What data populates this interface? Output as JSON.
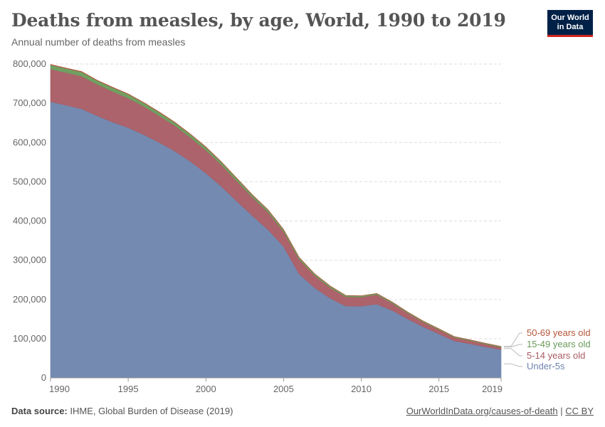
{
  "header": {
    "title": "Deaths from measles, by age, World, 1990 to 2019",
    "subtitle": "Annual number of deaths from measles",
    "logo_line1": "Our World",
    "logo_line2": "in Data"
  },
  "footer": {
    "source_label": "Data source:",
    "source_text": "IHME, Global Burden of Disease (2019)",
    "link_text": "OurWorldInData.org/causes-of-death",
    "separator": "|",
    "license_text": "CC BY"
  },
  "colors": {
    "under5": "#6d84ad",
    "age5_14": "#a95b63",
    "age15_49": "#6a9a5a",
    "age50_69": "#b5553a",
    "grid": "#dddddd",
    "axis": "#999999"
  },
  "chart_data": {
    "type": "area",
    "stacked": true,
    "x": [
      1990,
      1991,
      1992,
      1993,
      1994,
      1995,
      1996,
      1997,
      1998,
      1999,
      2000,
      2001,
      2002,
      2003,
      2004,
      2005,
      2006,
      2007,
      2008,
      2009,
      2010,
      2011,
      2012,
      2013,
      2014,
      2015,
      2016,
      2017,
      2018,
      2019
    ],
    "xticks": [
      1990,
      1995,
      2000,
      2005,
      2010,
      2015,
      2019
    ],
    "yticks": [
      0,
      100000,
      200000,
      300000,
      400000,
      500000,
      600000,
      700000,
      800000
    ],
    "ylim": [
      0,
      800000
    ],
    "xlim": [
      1990,
      2019
    ],
    "grid": "horizontal",
    "legend_position": "right",
    "series": [
      {
        "name": "Under-5s",
        "color": "#6d84ad",
        "values": [
          704000,
          695000,
          686000,
          668000,
          652000,
          638000,
          620000,
          600000,
          578000,
          552000,
          522000,
          488000,
          450000,
          413000,
          378000,
          335000,
          265000,
          230000,
          203000,
          183000,
          183000,
          188000,
          172000,
          150000,
          130000,
          112000,
          94000,
          87000,
          79000,
          72000
        ]
      },
      {
        "name": "5-14 years old",
        "color": "#a95b63",
        "values": [
          83000,
          83000,
          83000,
          80000,
          78000,
          75000,
          72000,
          68000,
          65000,
          61000,
          58000,
          55000,
          51000,
          47000,
          44000,
          38000,
          37000,
          31000,
          27000,
          24000,
          23000,
          24000,
          18000,
          15000,
          12000,
          11000,
          9000,
          8000,
          7000,
          6000
        ]
      },
      {
        "name": "15-49 years old",
        "color": "#6a9a5a",
        "values": [
          11000,
          11000,
          11000,
          10000,
          10000,
          10000,
          9000,
          9000,
          8000,
          8000,
          8000,
          7000,
          7000,
          6000,
          6000,
          5000,
          5000,
          4000,
          4000,
          3000,
          3000,
          3000,
          3000,
          2500,
          2500,
          2000,
          2000,
          2000,
          2000,
          2000
        ]
      },
      {
        "name": "50-69 years old",
        "color": "#b5553a",
        "values": [
          1000,
          1000,
          1000,
          1000,
          1000,
          1000,
          1000,
          1000,
          900,
          900,
          900,
          800,
          800,
          700,
          700,
          600,
          600,
          500,
          500,
          400,
          400,
          400,
          400,
          300,
          300,
          300,
          300,
          300,
          300,
          300
        ]
      }
    ]
  }
}
